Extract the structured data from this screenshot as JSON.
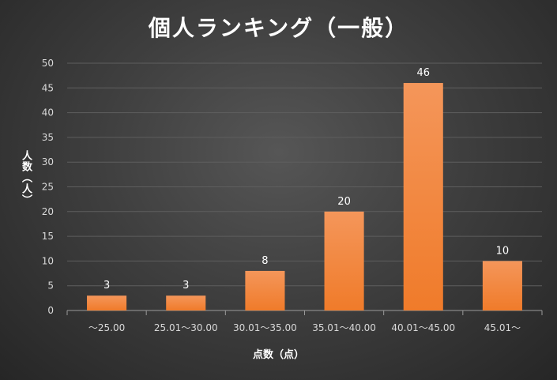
{
  "chart_data": {
    "type": "bar",
    "title": "個人ランキング（一般）",
    "xlabel": "点数（点）",
    "ylabel": "人数（人）",
    "categories": [
      "～25.00",
      "25.01～30.00",
      "30.01～35.00",
      "35.01～40.00",
      "40.01～45.00",
      "45.01～"
    ],
    "values": [
      3,
      3,
      8,
      20,
      46,
      10
    ],
    "ylim": [
      0,
      50
    ],
    "yticks": [
      0,
      5,
      10,
      15,
      20,
      25,
      30,
      35,
      40,
      45,
      50
    ],
    "grid": true,
    "legend": "none",
    "bar_color": "#f07b2a",
    "bar_color_light": "#f4965a",
    "background_color": "#404040"
  }
}
